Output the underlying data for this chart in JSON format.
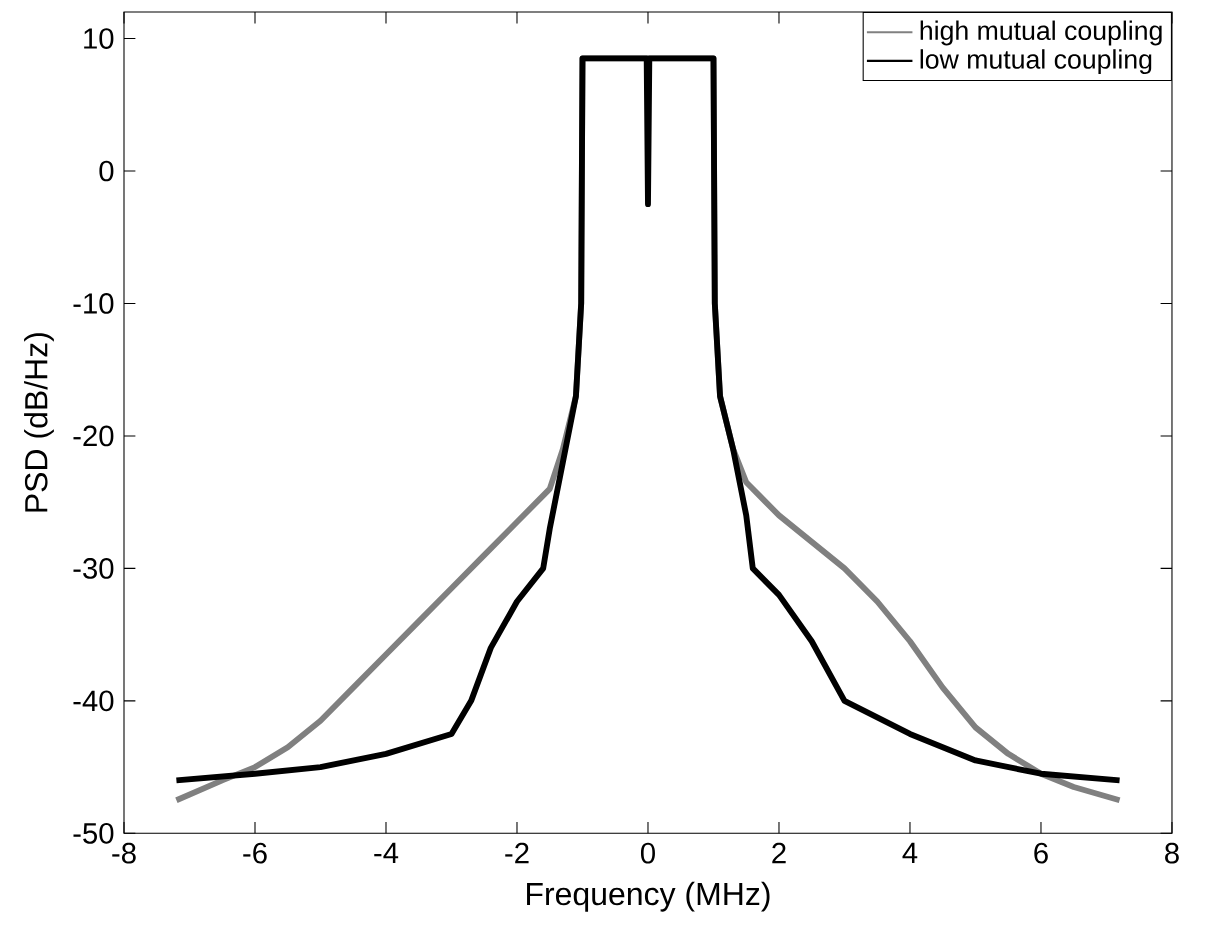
{
  "chart_data": {
    "type": "line",
    "xlabel": "Frequency (MHz)",
    "ylabel": "PSD (dB/Hz)",
    "xlim": [
      -8,
      8
    ],
    "ylim": [
      -50,
      12
    ],
    "xticks": [
      -8,
      -6,
      -4,
      -2,
      0,
      2,
      4,
      6,
      8
    ],
    "yticks": [
      -50,
      -40,
      -30,
      -20,
      -10,
      0,
      10
    ],
    "legend": "top right",
    "grid": false,
    "series": [
      {
        "name": "high mutual coupling",
        "color": "#808080",
        "x": [
          -7.2,
          -6.5,
          -6,
          -5.5,
          -5,
          -4.5,
          -4,
          -3.5,
          -3,
          -2.5,
          -2,
          -1.5,
          -1.3,
          -1.1,
          -1.02,
          -1,
          0,
          1,
          1.02,
          1.1,
          1.3,
          1.5,
          2,
          2.5,
          3,
          3.5,
          4,
          4.5,
          5,
          5.5,
          6,
          6.5,
          7.2
        ],
        "values": [
          -47.5,
          -46,
          -45,
          -43.5,
          -41.5,
          -39,
          -36.5,
          -34,
          -31.5,
          -29,
          -26.5,
          -24,
          -21,
          -17,
          -10,
          8.5,
          8.5,
          8.5,
          -10,
          -17,
          -21,
          -23.5,
          -26,
          -28,
          -30,
          -32.5,
          -35.5,
          -39,
          -42,
          -44,
          -45.5,
          -46.5,
          -47.5
        ]
      },
      {
        "name": "low mutual coupling",
        "color": "#000000",
        "x": [
          -7.2,
          -6,
          -5,
          -4,
          -3,
          -2.7,
          -2.4,
          -2,
          -1.6,
          -1.5,
          -1.3,
          -1.1,
          -1.02,
          -1,
          -0.02,
          0,
          0.02,
          1,
          1.02,
          1.1,
          1.3,
          1.5,
          1.6,
          2,
          2.5,
          3,
          4,
          5,
          6,
          7.2
        ],
        "values": [
          -46,
          -45.5,
          -45,
          -44,
          -42.5,
          -40,
          -36,
          -32.5,
          -30,
          -27,
          -22,
          -17,
          -10,
          8.5,
          8.5,
          -2.5,
          8.5,
          8.5,
          -10,
          -17,
          -21,
          -26,
          -30,
          -32,
          -35.5,
          -40,
          -42.5,
          -44.5,
          -45.5,
          -46
        ]
      }
    ]
  }
}
